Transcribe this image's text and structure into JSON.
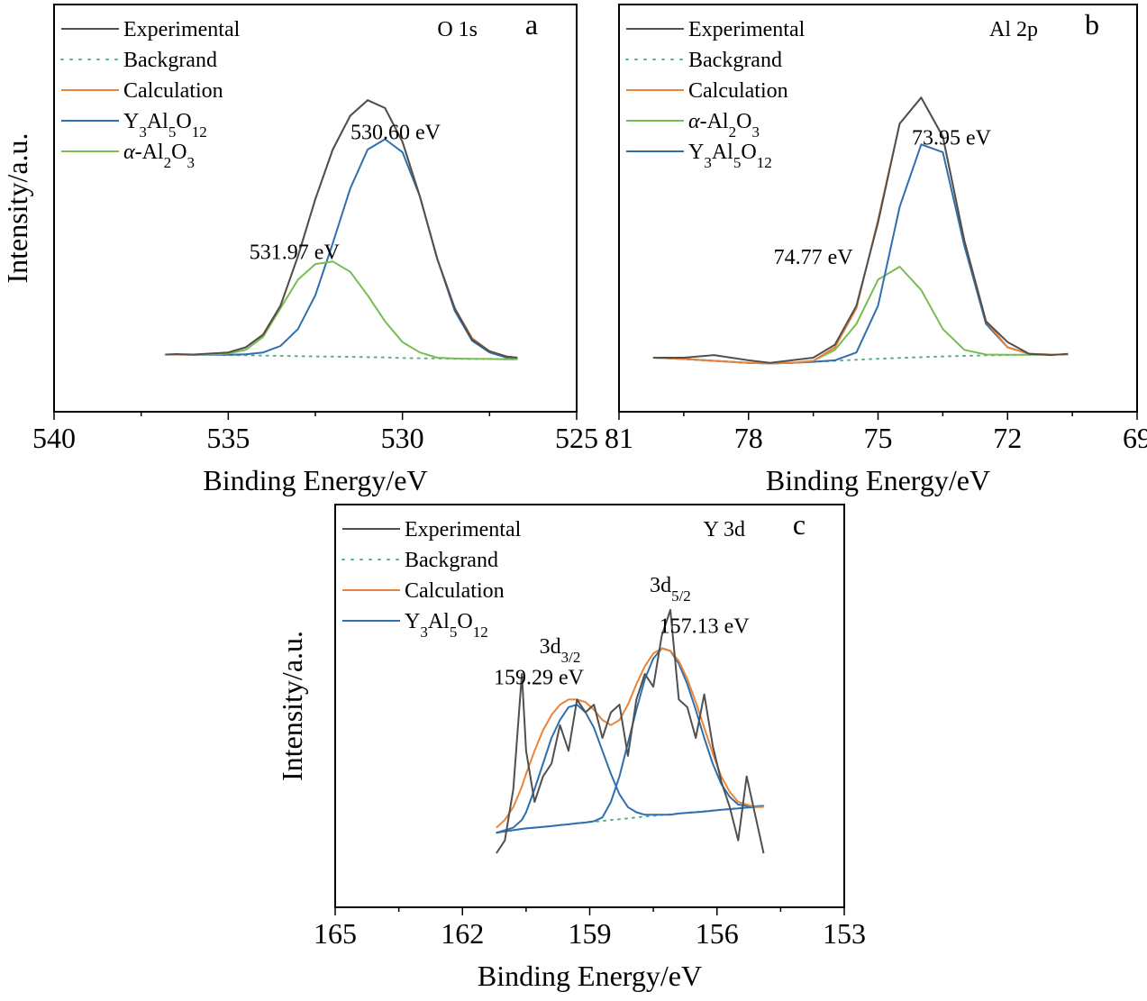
{
  "chart_data": [
    {
      "type": "line",
      "panel": "a",
      "title": "O 1s",
      "xlabel": "Binding Energy/eV",
      "ylabel": "Intensity/a.u.",
      "xlim": [
        540,
        525
      ],
      "ylim": [
        0,
        1.15
      ],
      "xticks": [
        540,
        535,
        530,
        525
      ],
      "x_reversed": true,
      "legend_position": "top-left",
      "x": [
        536.8,
        536.5,
        536.0,
        535.5,
        535.0,
        534.5,
        534.0,
        533.5,
        533.0,
        532.5,
        532.0,
        531.5,
        531.0,
        530.5,
        530.0,
        529.5,
        529.0,
        528.5,
        528.0,
        527.5,
        527.0,
        526.7
      ],
      "series": [
        {
          "name": "Experimental",
          "color": "#505050",
          "dash": "solid",
          "values": [
            0.012,
            0.014,
            0.012,
            0.016,
            0.02,
            0.04,
            0.088,
            0.2,
            0.39,
            0.61,
            0.8,
            0.93,
            0.99,
            0.96,
            0.83,
            0.62,
            0.38,
            0.19,
            0.07,
            0.025,
            0.004,
            0.0
          ]
        },
        {
          "name": "Backgrand",
          "color": "#59b389",
          "dash": "dotted",
          "values": [
            0.012,
            0.012,
            0.011,
            0.011,
            0.01,
            0.009,
            0.008,
            0.007,
            0.006,
            0.005,
            0.004,
            0.003,
            0.002,
            0.001,
            -0.001,
            -0.002,
            -0.003,
            -0.004,
            -0.005,
            -0.005,
            -0.006,
            -0.006
          ]
        },
        {
          "name": "Calculation",
          "color": "#e8853a",
          "dash": "solid",
          "values": [
            0.012,
            0.012,
            0.012,
            0.014,
            0.02,
            0.04,
            0.09,
            0.2,
            0.39,
            0.61,
            0.8,
            0.93,
            0.99,
            0.96,
            0.83,
            0.62,
            0.38,
            0.19,
            0.075,
            0.025,
            0.004,
            0.0
          ]
        },
        {
          "name": "Y3Al5O12",
          "color": "#2f6fae",
          "dash": "solid",
          "values": [
            0.012,
            0.012,
            0.011,
            0.011,
            0.011,
            0.013,
            0.02,
            0.045,
            0.11,
            0.24,
            0.44,
            0.65,
            0.8,
            0.84,
            0.79,
            0.62,
            0.38,
            0.18,
            0.065,
            0.02,
            0.0,
            -0.004
          ]
        },
        {
          "name": "α-Al2O3",
          "color": "#77bd52",
          "dash": "solid",
          "values": [
            0.012,
            0.012,
            0.012,
            0.012,
            0.016,
            0.03,
            0.08,
            0.19,
            0.3,
            0.36,
            0.37,
            0.33,
            0.24,
            0.14,
            0.06,
            0.02,
            0.0,
            -0.003,
            -0.004,
            -0.005,
            -0.006,
            -0.006
          ]
        }
      ],
      "legend": [
        "Experimental",
        "Backgrand",
        "Calculation",
        "Y3Al5O12",
        "α-Al2O3"
      ],
      "annotations": [
        {
          "text": "530.60 eV",
          "x": 530.2,
          "y": 0.84
        },
        {
          "text": "531.97 eV",
          "x": 533.1,
          "y": 0.38
        }
      ]
    },
    {
      "type": "line",
      "panel": "b",
      "title": "Al 2p",
      "xlabel": "Binding Energy/eV",
      "ylabel": "",
      "xlim": [
        81,
        69
      ],
      "ylim": [
        0,
        1.15
      ],
      "xticks": [
        81,
        78,
        75,
        72,
        69
      ],
      "x_reversed": true,
      "legend_position": "top-left",
      "x": [
        80.2,
        79.5,
        78.8,
        78.0,
        77.5,
        77.0,
        76.5,
        76.0,
        75.5,
        75.0,
        74.5,
        74.0,
        73.5,
        73.0,
        72.5,
        72.0,
        71.5,
        71.0,
        70.6
      ],
      "series": [
        {
          "name": "Experimental",
          "color": "#505050",
          "dash": "solid",
          "values": [
            0.0,
            0.0,
            0.01,
            -0.01,
            -0.02,
            -0.01,
            0.0,
            0.05,
            0.2,
            0.52,
            0.9,
            1.0,
            0.85,
            0.45,
            0.14,
            0.06,
            0.015,
            0.01,
            0.015
          ]
        },
        {
          "name": "Backgrand",
          "color": "#59b389",
          "dash": "dotted",
          "values": [
            0.0,
            -0.005,
            -0.012,
            -0.02,
            -0.022,
            -0.02,
            -0.016,
            -0.012,
            -0.008,
            -0.004,
            -0.001,
            0.002,
            0.005,
            0.007,
            0.009,
            0.01,
            0.011,
            0.012,
            0.012
          ]
        },
        {
          "name": "Calculation",
          "color": "#e8853a",
          "dash": "solid",
          "values": [
            0.0,
            -0.005,
            -0.012,
            -0.02,
            -0.022,
            -0.02,
            -0.012,
            0.04,
            0.19,
            0.53,
            0.9,
            1.0,
            0.85,
            0.45,
            0.14,
            0.04,
            0.015,
            0.012,
            0.012
          ]
        },
        {
          "name": "α-Al2O3",
          "color": "#77bd52",
          "dash": "solid",
          "values": [
            0.0,
            -0.005,
            -0.012,
            -0.02,
            -0.022,
            -0.02,
            -0.012,
            0.03,
            0.13,
            0.3,
            0.35,
            0.26,
            0.11,
            0.03,
            0.012,
            0.011,
            0.011,
            0.012,
            0.012
          ]
        },
        {
          "name": "Y3Al5O12",
          "color": "#2f6fae",
          "dash": "solid",
          "values": [
            0.0,
            -0.005,
            -0.012,
            -0.02,
            -0.022,
            -0.02,
            -0.016,
            -0.01,
            0.02,
            0.2,
            0.58,
            0.82,
            0.79,
            0.43,
            0.13,
            0.04,
            0.015,
            0.012,
            0.012
          ]
        }
      ],
      "legend": [
        "Experimental",
        "Backgrand",
        "Calculation",
        "α-Al2O3",
        "Y3Al5O12"
      ],
      "annotations": [
        {
          "text": "73.95 eV",
          "x": 73.3,
          "y": 0.82
        },
        {
          "text": "74.77 eV",
          "x": 76.5,
          "y": 0.36
        }
      ]
    },
    {
      "type": "line",
      "panel": "c",
      "title": "Y 3d",
      "xlabel": "Binding Energy/eV",
      "ylabel": "Intensity/a.u.",
      "xlim": [
        165,
        153
      ],
      "ylim": [
        0,
        1.15
      ],
      "xticks": [
        165,
        162,
        159,
        156,
        153
      ],
      "x_reversed": true,
      "legend_position": "top-left",
      "x": [
        161.2,
        161.0,
        160.8,
        160.6,
        160.5,
        160.3,
        160.1,
        159.9,
        159.7,
        159.5,
        159.3,
        159.1,
        158.9,
        158.7,
        158.5,
        158.3,
        158.1,
        157.9,
        157.7,
        157.5,
        157.3,
        157.1,
        156.9,
        156.7,
        156.5,
        156.3,
        156.1,
        155.9,
        155.7,
        155.5,
        155.3,
        155.1,
        154.9
      ],
      "series": [
        {
          "name": "Experimental",
          "color": "#505050",
          "dash": "solid",
          "values": [
            0.0,
            0.05,
            0.25,
            0.7,
            0.4,
            0.2,
            0.3,
            0.35,
            0.5,
            0.4,
            0.6,
            0.55,
            0.58,
            0.45,
            0.55,
            0.58,
            0.38,
            0.6,
            0.7,
            0.65,
            0.85,
            0.95,
            0.6,
            0.57,
            0.45,
            0.62,
            0.42,
            0.28,
            0.18,
            0.05,
            0.3,
            0.15,
            0.0
          ]
        },
        {
          "name": "Backgrand",
          "color": "#59b389",
          "dash": "dotted",
          "values": [
            0.08,
            0.085,
            0.09,
            0.095,
            0.097,
            0.1,
            0.103,
            0.106,
            0.11,
            0.113,
            0.117,
            0.12,
            0.123,
            0.126,
            0.13,
            0.133,
            0.136,
            0.14,
            0.143,
            0.146,
            0.149,
            0.152,
            0.155,
            0.158,
            0.161,
            0.164,
            0.167,
            0.17,
            0.173,
            0.176,
            0.179,
            0.182,
            0.185
          ]
        },
        {
          "name": "Calculation",
          "color": "#e8853a",
          "dash": "solid",
          "values": [
            0.1,
            0.13,
            0.18,
            0.26,
            0.31,
            0.4,
            0.48,
            0.54,
            0.58,
            0.6,
            0.6,
            0.59,
            0.56,
            0.52,
            0.5,
            0.52,
            0.58,
            0.66,
            0.73,
            0.78,
            0.8,
            0.79,
            0.75,
            0.68,
            0.59,
            0.49,
            0.39,
            0.3,
            0.24,
            0.2,
            0.19,
            0.18,
            0.18
          ]
        },
        {
          "name": "Y3Al5O12",
          "color": "#2f6fae",
          "dash": "solid",
          "values": [
            0.08,
            0.09,
            0.1,
            0.13,
            0.16,
            0.25,
            0.35,
            0.45,
            0.52,
            0.57,
            0.58,
            0.55,
            0.49,
            0.4,
            0.31,
            0.23,
            0.18,
            0.16,
            0.15,
            0.15,
            0.15,
            0.15,
            0.155,
            0.158,
            0.16,
            0.163,
            0.166,
            0.17,
            0.172,
            0.175,
            0.178,
            0.18,
            0.183
          ]
        },
        {
          "name": "Y3Al5O12 (3d5/2)",
          "color": "#2f6fae",
          "dash": "solid",
          "values": [
            0.08,
            0.085,
            0.09,
            0.095,
            0.097,
            0.1,
            0.103,
            0.106,
            0.11,
            0.113,
            0.117,
            0.12,
            0.125,
            0.14,
            0.2,
            0.3,
            0.43,
            0.56,
            0.68,
            0.76,
            0.8,
            0.79,
            0.74,
            0.66,
            0.56,
            0.45,
            0.35,
            0.27,
            0.22,
            0.19,
            0.185,
            0.183,
            0.185
          ]
        }
      ],
      "legend": [
        "Experimental",
        "Backgrand",
        "Calculation",
        "Y3Al5O12"
      ],
      "annotations": [
        {
          "text": "3d3/2",
          "x": 159.7,
          "y": 0.78
        },
        {
          "text": "159.29 eV",
          "x": 160.2,
          "y": 0.66
        },
        {
          "text": "3d5/2",
          "x": 157.1,
          "y": 1.02
        },
        {
          "text": "157.13 eV",
          "x": 156.3,
          "y": 0.86
        }
      ]
    }
  ]
}
